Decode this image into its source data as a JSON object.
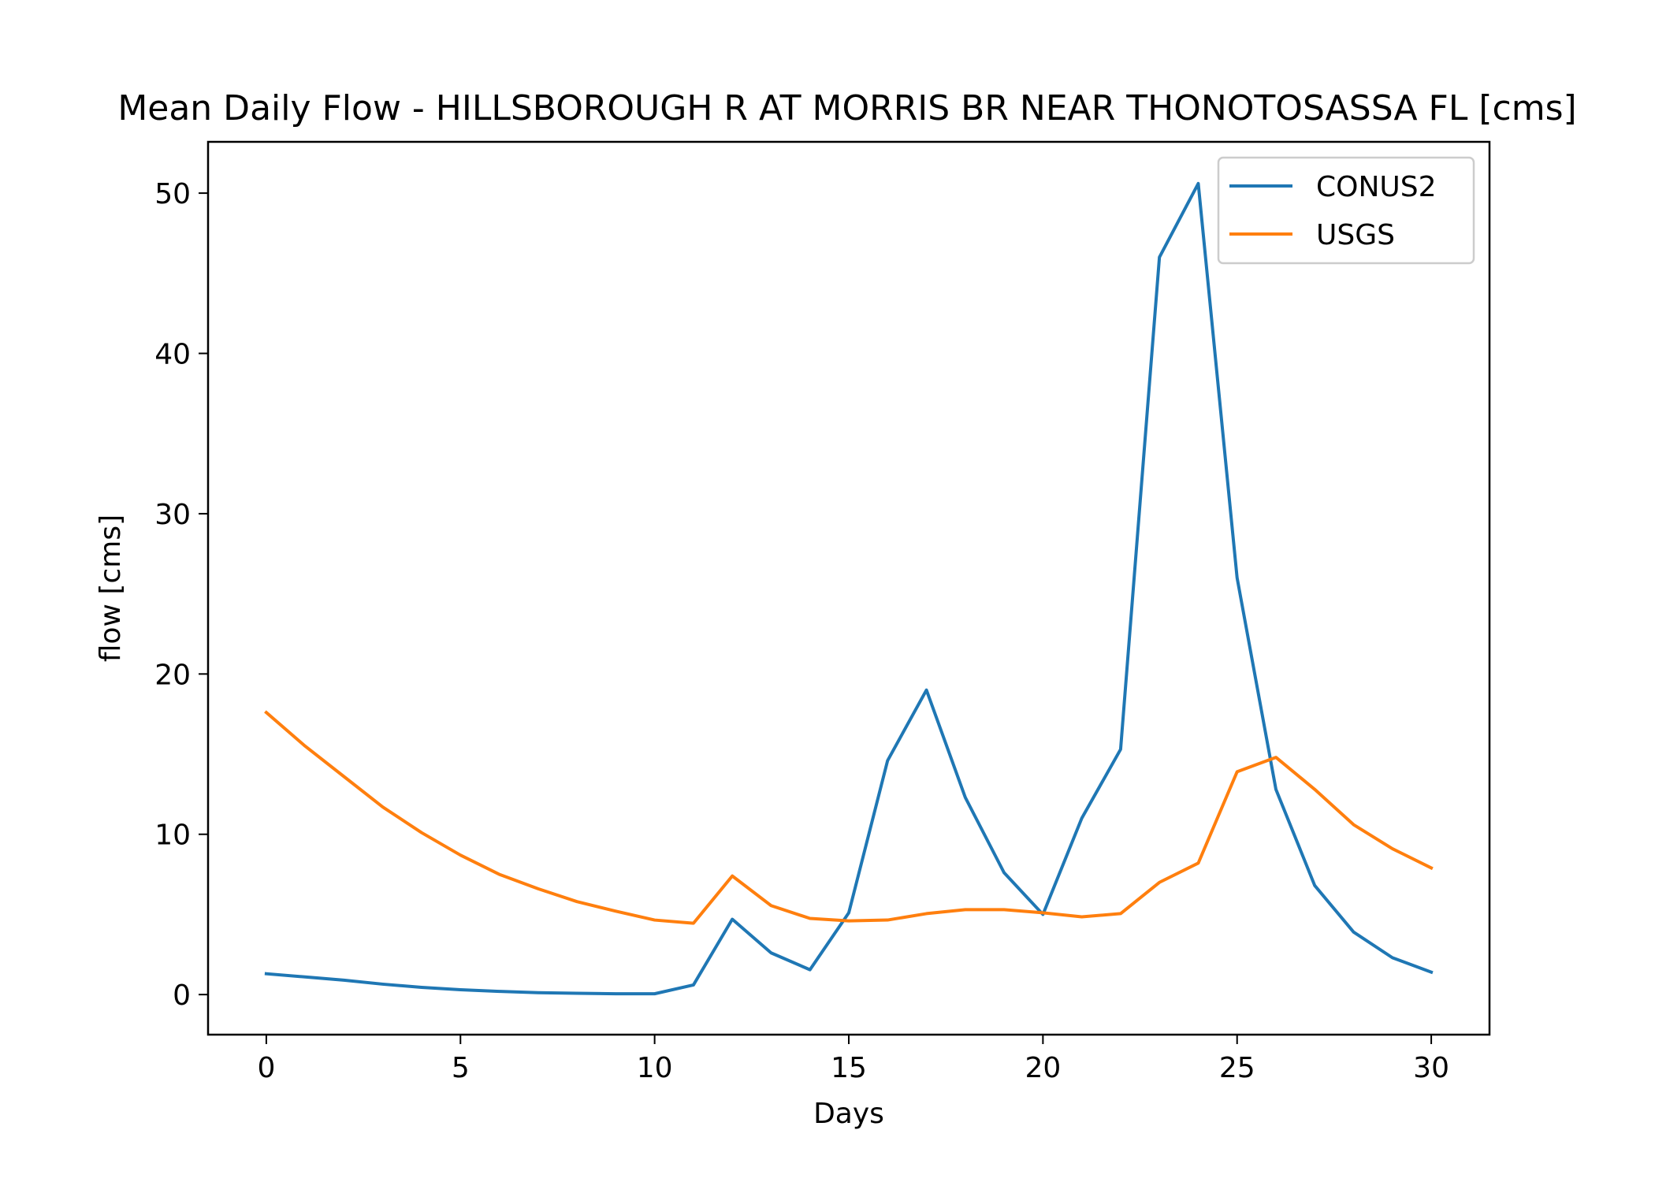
{
  "chart_data": {
    "type": "line",
    "title": "Mean Daily Flow - HILLSBOROUGH R AT MORRIS BR NEAR THONOTOSASSA FL [cms]",
    "xlabel": "Days",
    "ylabel": "flow [cms]",
    "xlim": [
      -1.5,
      31.5
    ],
    "ylim": [
      -2.5,
      53.2
    ],
    "xticks": [
      0,
      5,
      10,
      15,
      20,
      25,
      30
    ],
    "yticks": [
      0,
      10,
      20,
      30,
      40,
      50
    ],
    "grid": false,
    "legend_position": "top-right",
    "x": [
      0,
      1,
      2,
      3,
      4,
      5,
      6,
      7,
      8,
      9,
      10,
      11,
      12,
      13,
      14,
      15,
      16,
      17,
      18,
      19,
      20,
      21,
      22,
      23,
      24,
      25,
      26,
      27,
      28,
      29,
      30
    ],
    "series": [
      {
        "name": "CONUS2",
        "color": "#1f77b4",
        "values": [
          1.3,
          1.1,
          0.9,
          0.65,
          0.45,
          0.3,
          0.2,
          0.12,
          0.08,
          0.05,
          0.05,
          0.6,
          4.7,
          2.6,
          1.55,
          5.1,
          14.6,
          19.0,
          12.3,
          7.6,
          5.0,
          11.0,
          15.3,
          46.0,
          50.6,
          26.0,
          12.8,
          6.8,
          3.9,
          2.3,
          1.4
        ]
      },
      {
        "name": "USGS",
        "color": "#ff7f0e",
        "values": [
          17.6,
          15.5,
          13.6,
          11.7,
          10.1,
          8.7,
          7.5,
          6.6,
          5.8,
          5.2,
          4.65,
          4.45,
          7.4,
          5.55,
          4.75,
          4.6,
          4.65,
          5.05,
          5.3,
          5.3,
          5.1,
          4.85,
          5.05,
          7.0,
          8.2,
          13.9,
          14.8,
          12.8,
          10.6,
          9.1,
          7.9
        ]
      }
    ]
  }
}
